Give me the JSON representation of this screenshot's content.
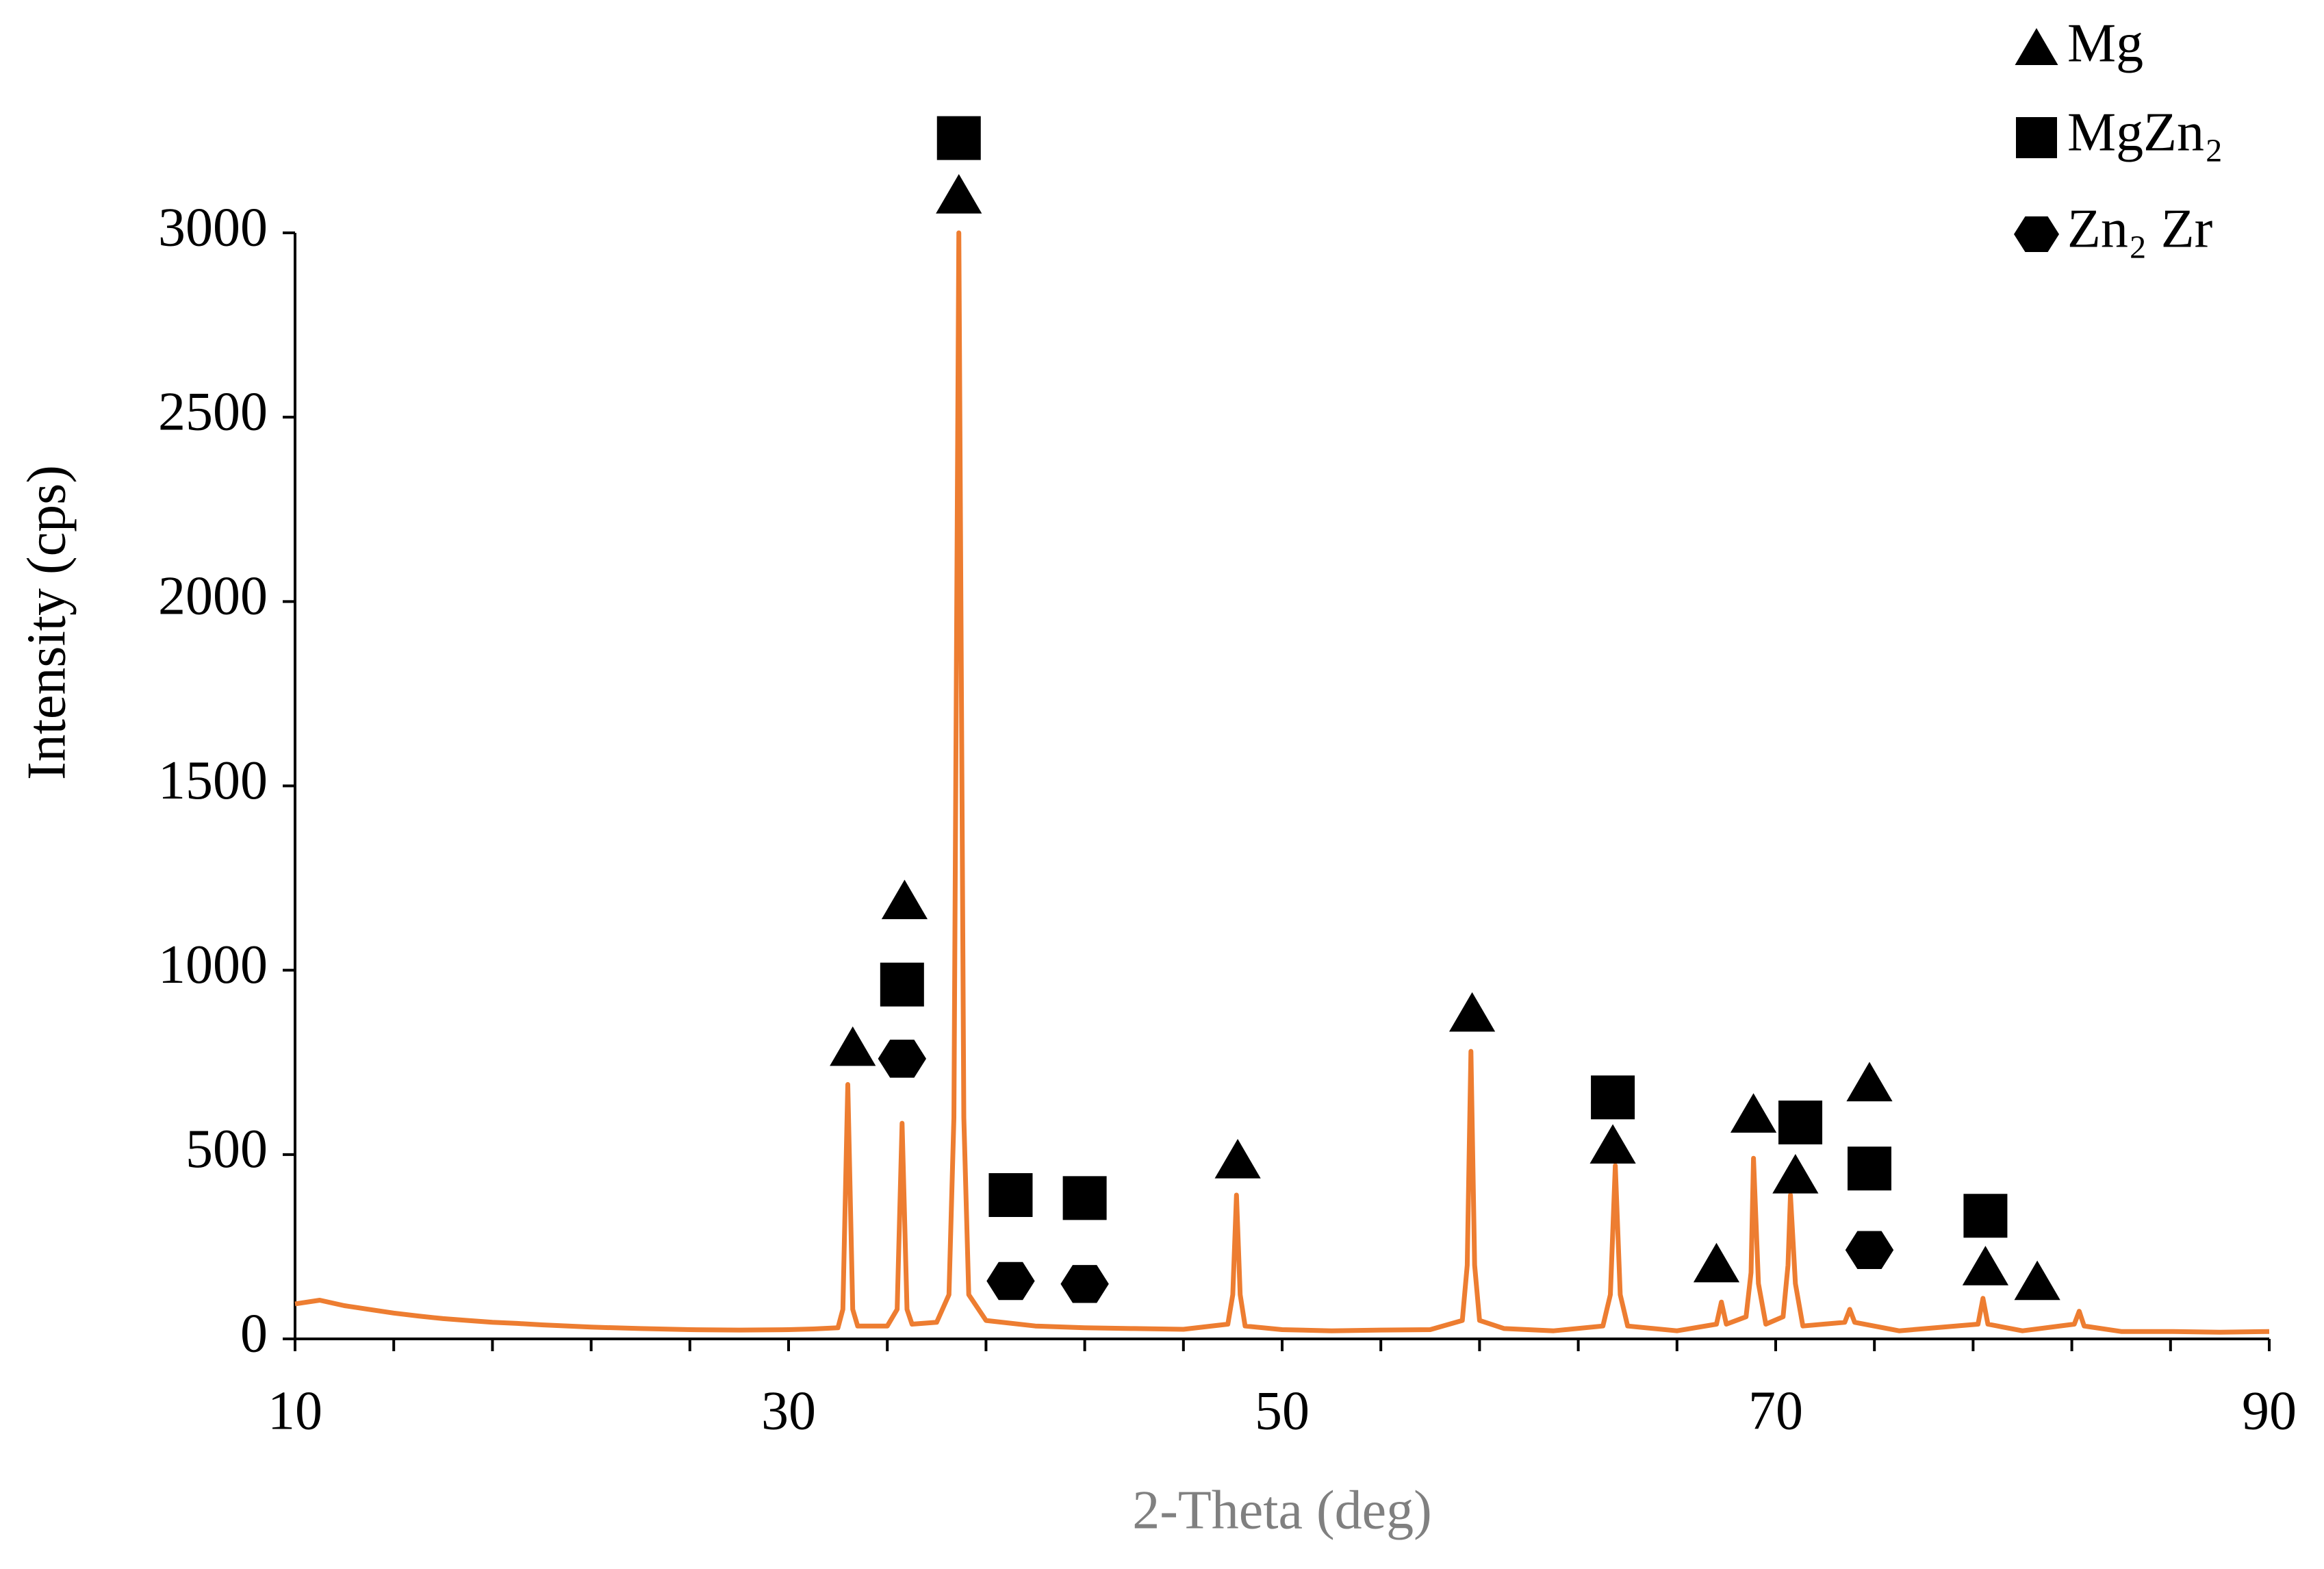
{
  "chart_data": {
    "type": "line",
    "x_label": "2-Theta (deg)",
    "y_label": "Intensity (cps)",
    "xlim": [
      10,
      90
    ],
    "xticks": [
      10,
      30,
      50,
      70,
      90
    ],
    "x_minor_ticks": [
      14,
      18,
      22,
      26,
      34,
      38,
      42,
      46,
      54,
      58,
      62,
      66,
      74,
      78,
      82,
      86
    ],
    "ylim": [
      0,
      3000
    ],
    "yticks": [
      0,
      500,
      1000,
      1500,
      2000,
      2500,
      3000
    ],
    "grid": false,
    "legend": "top-right",
    "series": [
      {
        "color": "#ed7d31",
        "x": [
          10,
          11,
          12,
          13,
          14,
          15,
          16,
          17,
          18,
          19,
          20,
          22,
          24,
          26,
          28,
          30,
          31,
          32,
          32.2,
          32.4,
          32.6,
          32.8,
          34.0,
          34.4,
          34.6,
          34.8,
          35.0,
          36.0,
          36.5,
          36.7,
          36.9,
          37.1,
          37.3,
          38.0,
          40,
          42,
          44,
          46,
          47.8,
          48.0,
          48.15,
          48.3,
          48.5,
          50,
          52,
          54,
          56,
          57.3,
          57.5,
          57.65,
          57.8,
          58.0,
          59,
          61,
          63.0,
          63.3,
          63.5,
          63.7,
          64.0,
          66,
          67.6,
          67.8,
          68.0,
          68.8,
          69.0,
          69.1,
          69.3,
          69.6,
          70.3,
          70.5,
          70.6,
          70.8,
          71.1,
          72.8,
          73.0,
          73.2,
          75,
          78.2,
          78.4,
          78.6,
          80,
          82.1,
          82.3,
          82.5,
          84,
          86,
          88,
          90
        ],
        "values": [
          95,
          105,
          90,
          80,
          70,
          62,
          55,
          50,
          45,
          42,
          38,
          32,
          28,
          25,
          24,
          25,
          27,
          30,
          80,
          690,
          80,
          35,
          35,
          80,
          585,
          80,
          40,
          45,
          120,
          600,
          3000,
          600,
          120,
          50,
          35,
          30,
          28,
          26,
          40,
          120,
          390,
          120,
          35,
          25,
          22,
          24,
          25,
          50,
          200,
          780,
          200,
          50,
          28,
          22,
          35,
          120,
          470,
          120,
          35,
          22,
          40,
          100,
          40,
          60,
          180,
          490,
          150,
          40,
          60,
          200,
          390,
          150,
          35,
          45,
          80,
          45,
          22,
          40,
          110,
          40,
          22,
          40,
          75,
          35,
          20,
          20,
          18,
          20
        ]
      }
    ],
    "phases": [
      {
        "name": "Mg",
        "marker": "triangle",
        "points": [
          {
            "x": 36.9,
            "y": 3100
          },
          {
            "x": 32.6,
            "y": 788
          },
          {
            "x": 34.7,
            "y": 1186
          },
          {
            "x": 48.2,
            "y": 483
          },
          {
            "x": 57.7,
            "y": 881
          },
          {
            "x": 63.4,
            "y": 523
          },
          {
            "x": 67.6,
            "y": 201
          },
          {
            "x": 69.1,
            "y": 607
          },
          {
            "x": 70.8,
            "y": 442
          },
          {
            "x": 73.8,
            "y": 692
          },
          {
            "x": 78.5,
            "y": 193
          },
          {
            "x": 80.6,
            "y": 153
          }
        ]
      },
      {
        "name": "MgZn₂",
        "marker": "square",
        "points": [
          {
            "x": 36.9,
            "y": 3257
          },
          {
            "x": 34.6,
            "y": 961
          },
          {
            "x": 39.0,
            "y": 390
          },
          {
            "x": 42.0,
            "y": 382
          },
          {
            "x": 63.4,
            "y": 655
          },
          {
            "x": 71.0,
            "y": 587
          },
          {
            "x": 73.8,
            "y": 462
          },
          {
            "x": 78.5,
            "y": 334
          }
        ]
      },
      {
        "name": "Zn₂ Zr",
        "marker": "hexagon",
        "points": [
          {
            "x": 34.6,
            "y": 760
          },
          {
            "x": 39.0,
            "y": 157
          },
          {
            "x": 42.0,
            "y": 149
          },
          {
            "x": 73.8,
            "y": 241
          }
        ]
      }
    ]
  }
}
